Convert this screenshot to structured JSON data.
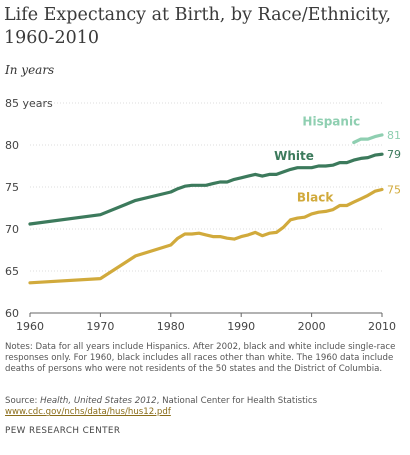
{
  "title": "Life Expectancy at Birth, by Race/Ethnicity, 1960-2010",
  "subtitle": "In years",
  "notes": "Notes: Data for all years include Hispanics. After 2002, black and white include single-race responses only. For 1960, black includes all races other than white. The 1960 data include deaths of persons who were not residents of the 50 states and the District of Columbia.",
  "source": {
    "prefix": "Source: ",
    "pub_italic": "Health, United States 2012",
    "suffix": ", National Center for Health Statistics",
    "link": "www.cdc.gov/nchs/data/hus/hus12.pdf"
  },
  "brand": "PEW RESEARCH CENTER",
  "colors": {
    "white": "#3c7a5c",
    "black": "#d1aa3c",
    "hispanic": "#8fcfb1",
    "axis": "#666666",
    "grid": "#dddddd"
  },
  "chart_data": {
    "type": "line",
    "xlim": [
      1960,
      2010
    ],
    "ylim": [
      60,
      85
    ],
    "x_ticks": [
      1960,
      1970,
      1980,
      1990,
      2000,
      2010
    ],
    "y_ticks": [
      {
        "value": 85,
        "label": "85 years"
      },
      {
        "value": 80,
        "label": "80"
      },
      {
        "value": 75,
        "label": "75"
      },
      {
        "value": 70,
        "label": "70"
      },
      {
        "value": 65,
        "label": "65"
      },
      {
        "value": 60,
        "label": "60"
      }
    ],
    "series": [
      {
        "key": "hispanic",
        "name": "Hispanic",
        "end_label": "81",
        "x": [
          2006,
          2007,
          2008,
          2009,
          2010
        ],
        "y": [
          80.3,
          80.7,
          80.7,
          81.0,
          81.2
        ]
      },
      {
        "key": "white",
        "name": "White",
        "end_label": "79",
        "x": [
          1960,
          1970,
          1975,
          1980,
          1981,
          1982,
          1983,
          1984,
          1985,
          1986,
          1987,
          1988,
          1989,
          1990,
          1991,
          1992,
          1993,
          1994,
          1995,
          1996,
          1997,
          1998,
          1999,
          2000,
          2001,
          2002,
          2003,
          2004,
          2005,
          2006,
          2007,
          2008,
          2009,
          2010
        ],
        "y": [
          70.6,
          71.7,
          73.4,
          74.4,
          74.8,
          75.1,
          75.2,
          75.2,
          75.2,
          75.4,
          75.6,
          75.6,
          75.9,
          76.1,
          76.3,
          76.5,
          76.3,
          76.5,
          76.5,
          76.8,
          77.1,
          77.3,
          77.3,
          77.3,
          77.5,
          77.5,
          77.6,
          77.9,
          77.9,
          78.2,
          78.4,
          78.5,
          78.8,
          78.9
        ]
      },
      {
        "key": "black",
        "name": "Black",
        "end_label": "75",
        "x": [
          1960,
          1970,
          1975,
          1980,
          1981,
          1982,
          1983,
          1984,
          1985,
          1986,
          1987,
          1988,
          1989,
          1990,
          1991,
          1992,
          1993,
          1994,
          1995,
          1996,
          1997,
          1998,
          1999,
          2000,
          2001,
          2002,
          2003,
          2004,
          2005,
          2006,
          2007,
          2008,
          2009,
          2010
        ],
        "y": [
          63.6,
          64.1,
          66.8,
          68.1,
          68.9,
          69.4,
          69.4,
          69.5,
          69.3,
          69.1,
          69.1,
          68.9,
          68.8,
          69.1,
          69.3,
          69.6,
          69.2,
          69.5,
          69.6,
          70.2,
          71.1,
          71.3,
          71.4,
          71.8,
          72.0,
          72.1,
          72.3,
          72.8,
          72.8,
          73.2,
          73.6,
          74.0,
          74.5,
          74.7
        ]
      }
    ]
  }
}
